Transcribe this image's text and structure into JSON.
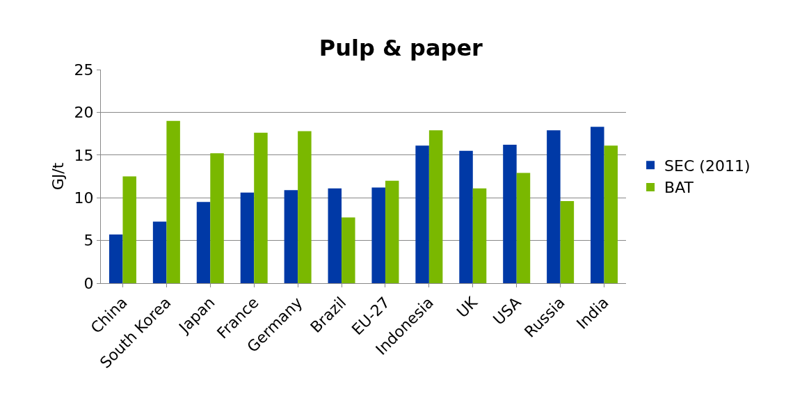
{
  "chart_data": {
    "type": "bar",
    "title": "Pulp & paper",
    "ylabel": "GJ/t",
    "categories": [
      "China",
      "South Korea",
      "Japan",
      "France",
      "Germany",
      "Brazil",
      "EU-27",
      "Indonesia",
      "UK",
      "USA",
      "Russia",
      "India"
    ],
    "series": [
      {
        "name": "SEC (2011)",
        "color": "#0039a6",
        "values": [
          5.7,
          7.2,
          9.5,
          10.6,
          10.9,
          11.1,
          11.2,
          16.1,
          15.5,
          16.2,
          17.9,
          18.3
        ]
      },
      {
        "name": "BAT",
        "color": "#7ab800",
        "values": [
          12.5,
          19.0,
          15.2,
          17.6,
          17.8,
          7.7,
          12.0,
          17.9,
          11.1,
          12.9,
          9.6,
          16.1
        ]
      }
    ],
    "ylim": [
      0,
      25
    ],
    "yticks": [
      0,
      5,
      10,
      15,
      20,
      25
    ],
    "grid": "y",
    "legend": "right"
  }
}
